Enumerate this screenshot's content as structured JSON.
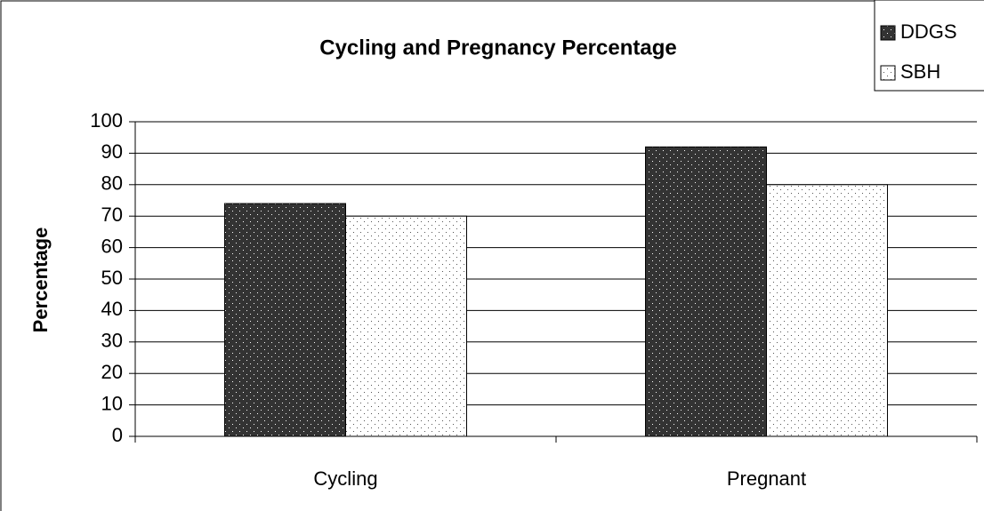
{
  "chart_data": {
    "type": "bar",
    "title": "Cycling and Pregnancy Percentage",
    "y_label": "Percentage",
    "categories": [
      "Cycling",
      "Pregnant"
    ],
    "series": [
      {
        "name": "DDGS",
        "color": "#333333",
        "values": [
          74,
          92
        ]
      },
      {
        "name": "SBH",
        "color": "#ffffff",
        "values": [
          70,
          80
        ]
      }
    ],
    "ylim": [
      0,
      100
    ],
    "yticks": [
      0,
      10,
      20,
      30,
      40,
      50,
      60,
      70,
      80,
      90,
      100
    ],
    "grid": true,
    "legend": "top-right"
  }
}
